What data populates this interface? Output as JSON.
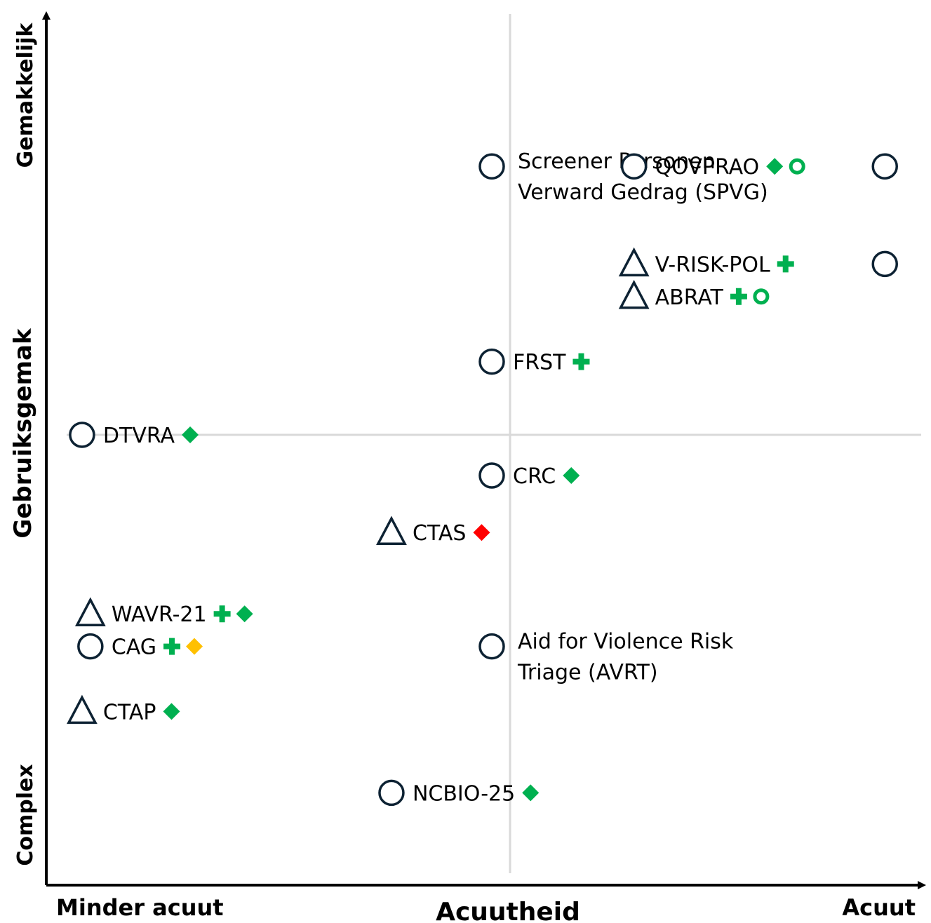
{
  "chart_data": {
    "type": "scatter",
    "x_axis": {
      "title": "Acuutheid",
      "low_label": "Minder acuut",
      "high_label": "Acuut",
      "range": [
        0,
        10
      ],
      "divider": 5
    },
    "y_axis": {
      "title": "Gebruiksgemak",
      "low_label": "Complex",
      "high_label": "Gemakkelijk",
      "range": [
        0,
        10
      ],
      "divider": 5
    },
    "grid": "quadrant-dividers",
    "colors": {
      "outline": "#0d2233",
      "green": "#00b050",
      "red": "#ff0000",
      "amber": "#ffc000",
      "divider": "#d9d9d9"
    },
    "points": [
      {
        "label": [
          "Screener Personen",
          "Verward Gedrag (SPVG)"
        ],
        "x": 5.0,
        "y": 8.3,
        "shape": "circle",
        "marks": []
      },
      {
        "label": [
          "QOVPRAO"
        ],
        "x": 6.7,
        "y": 8.3,
        "shape": "circle",
        "marks": [
          "green-diamond",
          "green-ring"
        ]
      },
      {
        "label": [
          ""
        ],
        "x": 9.7,
        "y": 8.3,
        "shape": "circle",
        "marks": []
      },
      {
        "label": [
          "V-RISK-POL"
        ],
        "x": 6.7,
        "y": 7.1,
        "shape": "triangle",
        "marks": [
          "green-plus"
        ]
      },
      {
        "label": [
          ""
        ],
        "x": 9.7,
        "y": 7.1,
        "shape": "circle",
        "marks": []
      },
      {
        "label": [
          "ABRAT"
        ],
        "x": 6.7,
        "y": 6.7,
        "shape": "triangle",
        "marks": [
          "green-plus",
          "green-ring"
        ]
      },
      {
        "label": [
          "FRST"
        ],
        "x": 5.0,
        "y": 5.9,
        "shape": "circle",
        "marks": [
          "green-plus"
        ]
      },
      {
        "label": [
          "DTVRA"
        ],
        "x": 0.1,
        "y": 5.0,
        "shape": "circle",
        "marks": [
          "green-diamond"
        ]
      },
      {
        "label": [
          "CRC"
        ],
        "x": 5.0,
        "y": 4.5,
        "shape": "circle",
        "marks": [
          "green-diamond"
        ]
      },
      {
        "label": [
          "CTAS"
        ],
        "x": 3.8,
        "y": 3.8,
        "shape": "triangle",
        "marks": [
          "red-diamond"
        ]
      },
      {
        "label": [
          "WAVR-21"
        ],
        "x": 0.2,
        "y": 2.8,
        "shape": "triangle",
        "marks": [
          "green-plus",
          "green-diamond"
        ]
      },
      {
        "label": [
          "CAG"
        ],
        "x": 0.2,
        "y": 2.4,
        "shape": "circle",
        "marks": [
          "green-plus",
          "amber-diamond"
        ]
      },
      {
        "label": [
          "Aid for Violence Risk",
          "Triage (AVRT)"
        ],
        "x": 5.0,
        "y": 2.4,
        "shape": "circle",
        "marks": []
      },
      {
        "label": [
          "CTAP"
        ],
        "x": 0.1,
        "y": 1.6,
        "shape": "triangle",
        "marks": [
          "green-diamond"
        ]
      },
      {
        "label": [
          "NCBIO-25"
        ],
        "x": 3.8,
        "y": 0.6,
        "shape": "circle",
        "marks": [
          "green-diamond"
        ]
      }
    ]
  }
}
